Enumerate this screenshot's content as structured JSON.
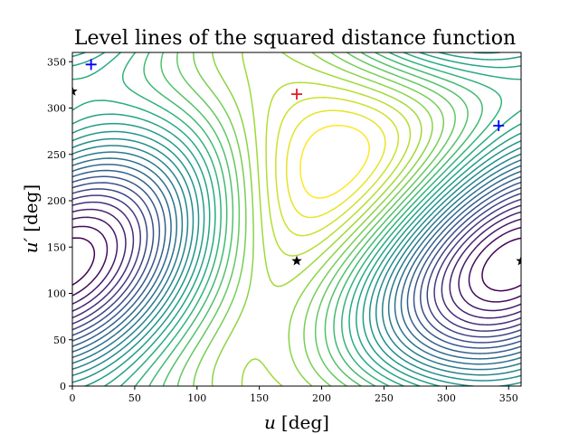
{
  "chart_data": {
    "type": "contour",
    "title": "Level lines of the squared distance function",
    "xlabel": "u",
    "xlabel_unit": "[deg]",
    "ylabel": "u′",
    "ylabel_unit": "[deg]",
    "xlim": [
      0,
      360
    ],
    "ylim": [
      0,
      360
    ],
    "xticks": [
      0,
      50,
      100,
      150,
      200,
      250,
      300,
      350
    ],
    "yticks": [
      0,
      50,
      100,
      150,
      200,
      250,
      300,
      350
    ],
    "grid": false,
    "colormap": "viridis",
    "levels": 30,
    "markers": [
      {
        "kind": "max",
        "symbol": "+",
        "color": "#e41a1c",
        "x": 180,
        "y": 315
      },
      {
        "kind": "min",
        "symbol": "+",
        "color": "#0000ff",
        "x": 15,
        "y": 347
      },
      {
        "kind": "min",
        "symbol": "+",
        "color": "#0000ff",
        "x": 342,
        "y": 281
      },
      {
        "kind": "saddle",
        "symbol": "star",
        "color": "#000000",
        "x": 180,
        "y": 135
      },
      {
        "kind": "saddle",
        "symbol": "star",
        "color": "#000000",
        "x": 0,
        "y": 318
      },
      {
        "kind": "saddle",
        "symbol": "star",
        "color": "#000000",
        "x": 360,
        "y": 135
      }
    ]
  }
}
